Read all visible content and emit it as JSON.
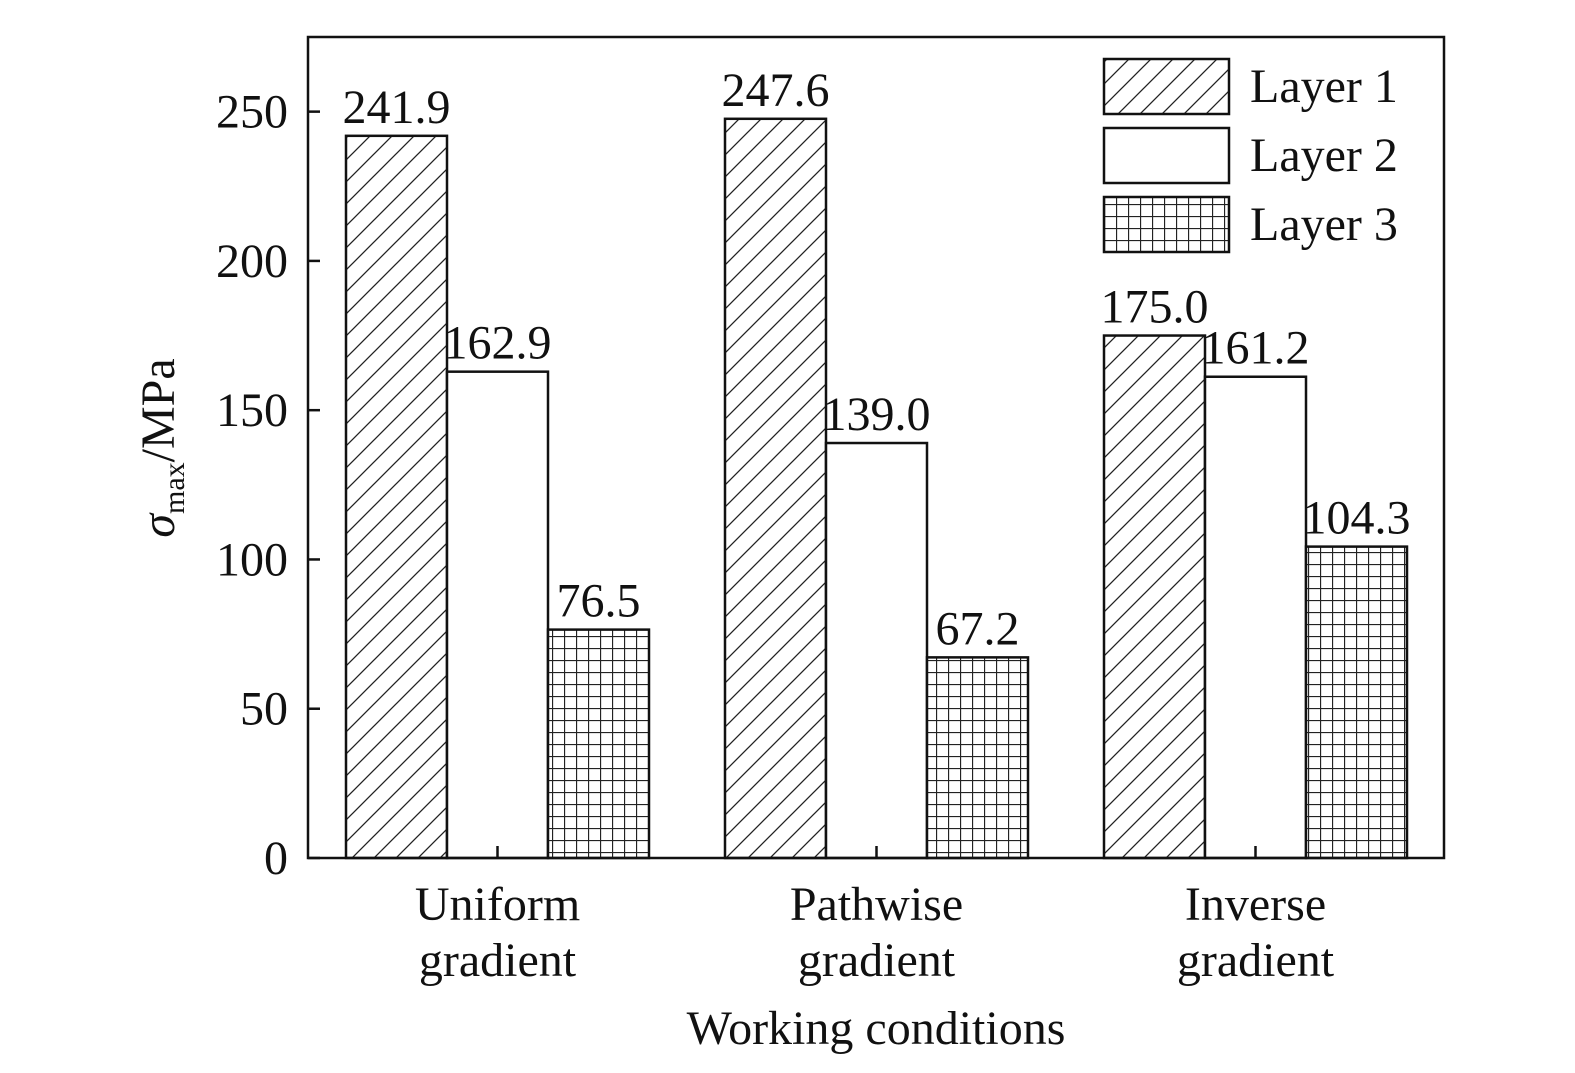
{
  "chart_data": {
    "type": "bar",
    "categories": [
      [
        "Uniform",
        "gradient"
      ],
      [
        "Pathwise",
        "gradient"
      ],
      [
        "Inverse",
        "gradient"
      ]
    ],
    "series": [
      {
        "name": "Layer 1",
        "pattern": "diagonal-hatch",
        "values": [
          241.9,
          247.6,
          175.0
        ],
        "labels": [
          "241.9",
          "247.6",
          "175.0"
        ]
      },
      {
        "name": "Layer 2",
        "pattern": "none",
        "values": [
          162.9,
          139.0,
          161.2
        ],
        "labels": [
          "162.9",
          "139.0",
          "161.2"
        ]
      },
      {
        "name": "Layer 3",
        "pattern": "grid-hatch",
        "values": [
          76.5,
          67.2,
          104.3
        ],
        "labels": [
          "76.5",
          "67.2",
          "104.3"
        ]
      }
    ],
    "xlabel": "Working conditions",
    "ylabel": {
      "symbol": "σ",
      "subscript": "max",
      "unit": "/MPa"
    },
    "ylim": [
      0,
      275
    ],
    "yticks": [
      0,
      50,
      100,
      150,
      200,
      250
    ],
    "legend_position": "top-right",
    "grid": false,
    "colors": {
      "stroke": "#111111",
      "fill": "#ffffff"
    }
  }
}
